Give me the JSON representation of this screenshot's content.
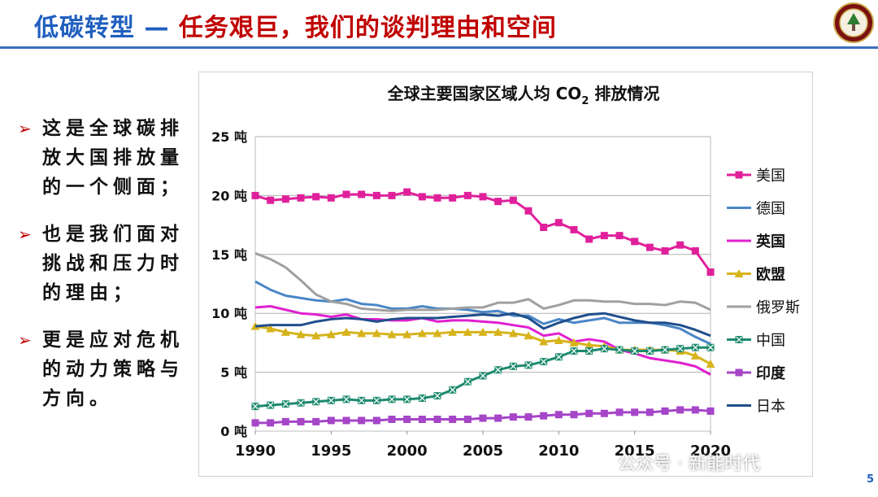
{
  "slide": {
    "title_part1": "低碳转型 — ",
    "title_part2": "任务艰巨，我们的谈判理由和空间",
    "page_number": "5",
    "watermark": "公众号 · 新能时代"
  },
  "bullets": [
    {
      "text": "这是全球碳排放大国排放量的一个侧面；"
    },
    {
      "text": "也是我们面对挑战和压力时的理由；"
    },
    {
      "text": "更是应对危机的动力策略与方向。"
    }
  ],
  "colors": {
    "title_blue": "#1f5fbf",
    "title_red": "#c00000",
    "bullet_arrow": "#c00000"
  },
  "icons": {
    "logo": "university-seal-icon",
    "bullet": "arrow-bullet-icon"
  },
  "chart_data": {
    "type": "line",
    "title": "全球主要国家区域人均 CO2 排放情况",
    "title_main": "全球主要国家区域人均 CO",
    "title_sub": "2",
    "title_tail": " 排放情况",
    "x": [
      1990,
      1991,
      1992,
      1993,
      1994,
      1995,
      1996,
      1997,
      1998,
      1999,
      2000,
      2001,
      2002,
      2003,
      2004,
      2005,
      2006,
      2007,
      2008,
      2009,
      2010,
      2011,
      2012,
      2013,
      2014,
      2015,
      2016,
      2017,
      2018,
      2019,
      2020
    ],
    "xticks": [
      1990,
      1995,
      2000,
      2005,
      2010,
      2015,
      2020
    ],
    "xtick_labels": [
      "1990",
      "1995",
      "2000",
      "2005",
      "2010",
      "2015",
      "2020"
    ],
    "yticks": [
      0,
      5,
      10,
      15,
      20,
      25
    ],
    "ytick_labels": [
      "0 吨",
      "5 吨",
      "10 吨",
      "15 吨",
      "20 吨",
      "25 吨"
    ],
    "ylim": [
      0,
      25
    ],
    "xlim": [
      1990,
      2020
    ],
    "grid": "horizontal",
    "legend_position": "right",
    "series": [
      {
        "name": "美国",
        "color": "#e0209b",
        "marker": "square",
        "bold": false,
        "values": [
          20.0,
          19.6,
          19.7,
          19.8,
          19.9,
          19.8,
          20.1,
          20.1,
          20.0,
          20.0,
          20.3,
          19.9,
          19.8,
          19.8,
          20.0,
          19.9,
          19.5,
          19.6,
          18.7,
          17.3,
          17.7,
          17.1,
          16.3,
          16.6,
          16.6,
          16.1,
          15.6,
          15.3,
          15.8,
          15.3,
          13.5
        ]
      },
      {
        "name": "德国",
        "color": "#4a86c6",
        "marker": "none",
        "bold": false,
        "values": [
          12.7,
          12.0,
          11.5,
          11.3,
          11.1,
          11.0,
          11.2,
          10.8,
          10.7,
          10.4,
          10.4,
          10.6,
          10.4,
          10.4,
          10.3,
          10.1,
          10.2,
          9.8,
          9.8,
          9.1,
          9.5,
          9.2,
          9.4,
          9.6,
          9.2,
          9.2,
          9.2,
          9.0,
          8.7,
          8.0,
          7.4
        ]
      },
      {
        "name": "英国",
        "color": "#e020d0",
        "marker": "none",
        "bold": true,
        "values": [
          10.5,
          10.6,
          10.3,
          10.0,
          9.9,
          9.7,
          9.9,
          9.5,
          9.5,
          9.4,
          9.4,
          9.6,
          9.3,
          9.4,
          9.4,
          9.3,
          9.2,
          9.0,
          8.8,
          8.1,
          8.3,
          7.6,
          7.8,
          7.6,
          6.9,
          6.6,
          6.2,
          6.0,
          5.8,
          5.5,
          4.8
        ]
      },
      {
        "name": "欧盟",
        "color": "#d6b31c",
        "marker": "triangle",
        "bold": true,
        "values": [
          8.9,
          8.7,
          8.4,
          8.2,
          8.1,
          8.2,
          8.4,
          8.3,
          8.3,
          8.2,
          8.2,
          8.3,
          8.3,
          8.4,
          8.4,
          8.4,
          8.4,
          8.3,
          8.1,
          7.6,
          7.7,
          7.5,
          7.3,
          7.2,
          6.9,
          6.9,
          6.9,
          6.9,
          6.8,
          6.4,
          5.7
        ]
      },
      {
        "name": "俄罗斯",
        "color": "#a0a0a0",
        "marker": "none",
        "bold": false,
        "values": [
          15.1,
          14.6,
          13.9,
          12.8,
          11.6,
          11.0,
          10.8,
          10.4,
          10.3,
          10.2,
          10.3,
          10.3,
          10.3,
          10.4,
          10.5,
          10.5,
          10.9,
          10.9,
          11.2,
          10.4,
          10.7,
          11.1,
          11.1,
          11.0,
          11.0,
          10.8,
          10.8,
          10.7,
          11.0,
          10.9,
          10.3
        ]
      },
      {
        "name": "中国",
        "color": "#1e8a6e",
        "marker": "square-x",
        "bold": false,
        "values": [
          2.1,
          2.2,
          2.3,
          2.4,
          2.5,
          2.6,
          2.7,
          2.6,
          2.6,
          2.7,
          2.7,
          2.8,
          3.0,
          3.5,
          4.2,
          4.7,
          5.2,
          5.5,
          5.6,
          5.9,
          6.3,
          6.8,
          6.8,
          7.0,
          6.9,
          6.8,
          6.8,
          6.9,
          7.0,
          7.1,
          7.1
        ]
      },
      {
        "name": "印度",
        "color": "#a545c8",
        "marker": "square",
        "bold": true,
        "values": [
          0.7,
          0.7,
          0.8,
          0.8,
          0.8,
          0.9,
          0.9,
          0.9,
          0.9,
          1.0,
          1.0,
          1.0,
          1.0,
          1.0,
          1.0,
          1.1,
          1.1,
          1.2,
          1.2,
          1.3,
          1.4,
          1.4,
          1.5,
          1.5,
          1.6,
          1.6,
          1.6,
          1.7,
          1.8,
          1.8,
          1.7
        ]
      },
      {
        "name": "日本",
        "color": "#1f4e8c",
        "marker": "none",
        "bold": false,
        "values": [
          8.9,
          9.0,
          9.0,
          9.0,
          9.3,
          9.5,
          9.6,
          9.5,
          9.3,
          9.5,
          9.6,
          9.6,
          9.6,
          9.7,
          9.8,
          9.9,
          9.8,
          10.0,
          9.6,
          8.7,
          9.2,
          9.6,
          9.9,
          10.0,
          9.7,
          9.4,
          9.2,
          9.2,
          9.0,
          8.6,
          8.1
        ]
      }
    ]
  }
}
